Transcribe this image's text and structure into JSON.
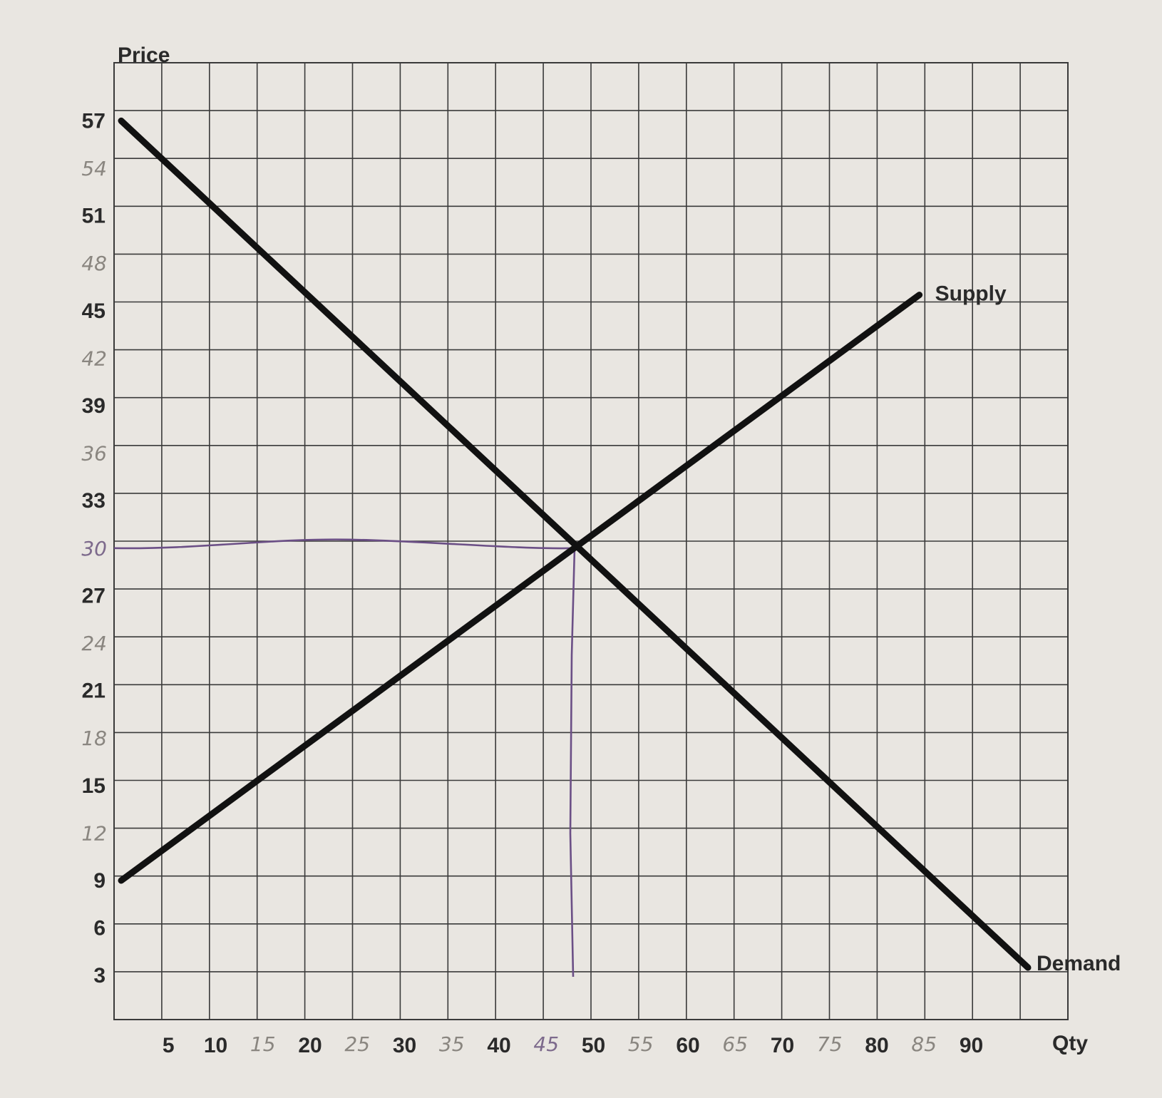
{
  "chart_data": {
    "type": "line",
    "title": "",
    "xlabel": "Qty",
    "ylabel": "Price",
    "xlim": [
      0,
      100
    ],
    "ylim": [
      0,
      60
    ],
    "grid": true,
    "series": [
      {
        "name": "Demand",
        "x": [
          0,
          96
        ],
        "y": [
          57,
          3.5
        ],
        "color": "#111111"
      },
      {
        "name": "Supply",
        "x": [
          0,
          84.5
        ],
        "y": [
          9,
          46
        ],
        "color": "#111111"
      }
    ],
    "x_ticks_printed": [
      {
        "value": 5,
        "label": "5"
      },
      {
        "value": 10,
        "label": "10"
      },
      {
        "value": 20,
        "label": "20"
      },
      {
        "value": 30,
        "label": "30"
      },
      {
        "value": 40,
        "label": "40"
      },
      {
        "value": 50,
        "label": "50"
      },
      {
        "value": 60,
        "label": "60"
      },
      {
        "value": 70,
        "label": "70"
      },
      {
        "value": 80,
        "label": "80"
      },
      {
        "value": 90,
        "label": "90"
      }
    ],
    "x_ticks_handwritten": [
      {
        "value": 15,
        "label": "15"
      },
      {
        "value": 25,
        "label": "25"
      },
      {
        "value": 35,
        "label": "35"
      },
      {
        "value": 45,
        "label": "45"
      },
      {
        "value": 55,
        "label": "55"
      },
      {
        "value": 65,
        "label": "65"
      },
      {
        "value": 75,
        "label": "75"
      },
      {
        "value": 85,
        "label": "85"
      }
    ],
    "y_ticks_printed": [
      {
        "value": 57,
        "label": "57"
      },
      {
        "value": 51,
        "label": "51"
      },
      {
        "value": 45,
        "label": "45"
      },
      {
        "value": 39,
        "label": "39"
      },
      {
        "value": 33,
        "label": "33"
      },
      {
        "value": 27,
        "label": "27"
      },
      {
        "value": 21,
        "label": "21"
      },
      {
        "value": 15,
        "label": "15"
      },
      {
        "value": 9,
        "label": "9"
      },
      {
        "value": 6,
        "label": "6"
      },
      {
        "value": 3,
        "label": "3"
      }
    ],
    "y_ticks_handwritten": [
      {
        "value": 54,
        "label": "54"
      },
      {
        "value": 48,
        "label": "48"
      },
      {
        "value": 42,
        "label": "42"
      },
      {
        "value": 36,
        "label": "36"
      },
      {
        "value": 30,
        "label": "30"
      },
      {
        "value": 24,
        "label": "24"
      },
      {
        "value": 18,
        "label": "18"
      },
      {
        "value": 12,
        "label": "12"
      }
    ],
    "equilibrium_guides": {
      "price": 30,
      "quantity": 48,
      "color": "#6b4f86"
    },
    "colors": {
      "paper": "#e9e6e1",
      "grid": "#3a3a3a",
      "curves": "#111111",
      "pencil": "#8a8680",
      "purple_ink": "#6b4f86"
    }
  }
}
